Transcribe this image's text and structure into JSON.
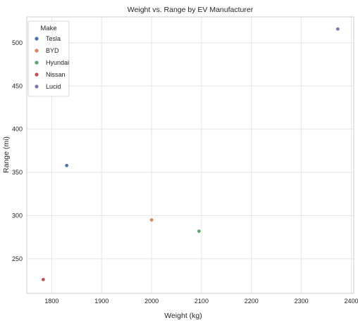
{
  "chart_data": {
    "type": "scatter",
    "title": "Weight vs. Range by EV Manufacturer",
    "xlabel": "Weight (kg)",
    "ylabel": "Range (mi)",
    "xlim": [
      1750,
      2405
    ],
    "ylim": [
      210,
      530
    ],
    "xticks": [
      1800,
      1900,
      2000,
      2100,
      2200,
      2300,
      2400
    ],
    "yticks": [
      250,
      300,
      350,
      400,
      450,
      500
    ],
    "grid": true,
    "legend": {
      "title": "Make",
      "placement": "top-left"
    },
    "series": [
      {
        "name": "Tesla",
        "color": "#4c72b0",
        "points": [
          {
            "x": 1830,
            "y": 358
          }
        ]
      },
      {
        "name": "BYD",
        "color": "#dd8452",
        "points": [
          {
            "x": 2000,
            "y": 295
          }
        ]
      },
      {
        "name": "Hyundai",
        "color": "#55a868",
        "points": [
          {
            "x": 2095,
            "y": 282
          }
        ]
      },
      {
        "name": "Nissan",
        "color": "#c44e52",
        "points": [
          {
            "x": 1783,
            "y": 226
          }
        ]
      },
      {
        "name": "Lucid",
        "color": "#8172b3",
        "points": [
          {
            "x": 2373,
            "y": 516
          }
        ]
      }
    ]
  }
}
